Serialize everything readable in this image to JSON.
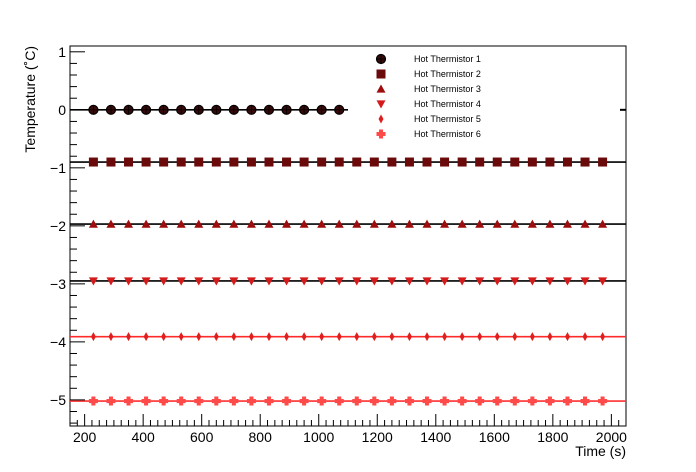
{
  "chart_data": {
    "type": "scatter",
    "xlabel": "Time (s)",
    "ylabel": "Temperature (˚C)",
    "xlim": [
      150,
      2050
    ],
    "ylim": [
      -5.45,
      1.1
    ],
    "x_ticks": [
      200,
      400,
      600,
      800,
      1000,
      1200,
      1400,
      1600,
      1800,
      2000
    ],
    "y_ticks": [
      1,
      0,
      -1,
      -2,
      -3,
      -4,
      -5
    ],
    "grid": false,
    "legend_position": "top-center",
    "series": [
      {
        "name": "Hot Thermistor 1",
        "marker": "circle",
        "color": "#3a0a0a",
        "line_color": "#000000",
        "x_start": 230,
        "x_step": 60,
        "count": 15,
        "y": 0.0,
        "fit_x": [
          150,
          1100
        ]
      },
      {
        "name": "Hot Thermistor 2",
        "marker": "square",
        "color": "#6b0a0a",
        "line_color": "#000000",
        "x_start": 230,
        "x_step": 60,
        "count": 30,
        "y": -0.9,
        "fit_x": [
          150,
          2050
        ]
      },
      {
        "name": "Hot Thermistor 3",
        "marker": "triangle-up",
        "color": "#9e0d0d",
        "line_color": "#000000",
        "x_start": 230,
        "x_step": 60,
        "count": 30,
        "y": -1.97,
        "fit_x": [
          150,
          2050
        ]
      },
      {
        "name": "Hot Thermistor 4",
        "marker": "triangle-down",
        "color": "#d41a1a",
        "line_color": "#000000",
        "x_start": 230,
        "x_step": 60,
        "count": 30,
        "y": -2.95,
        "fit_x": [
          150,
          2050
        ]
      },
      {
        "name": "Hot Thermistor 5",
        "marker": "diamond",
        "color": "#e01e1e",
        "line_color": "#ff2a2a",
        "x_start": 230,
        "x_step": 60,
        "count": 30,
        "y": -3.91,
        "fit_x": [
          150,
          2050
        ]
      },
      {
        "name": "Hot Thermistor 6",
        "marker": "cross",
        "color": "#ff4a4a",
        "line_color": "#ff3030",
        "x_start": 230,
        "x_step": 60,
        "count": 30,
        "y": -5.02,
        "fit_x": [
          150,
          2050
        ]
      }
    ]
  }
}
